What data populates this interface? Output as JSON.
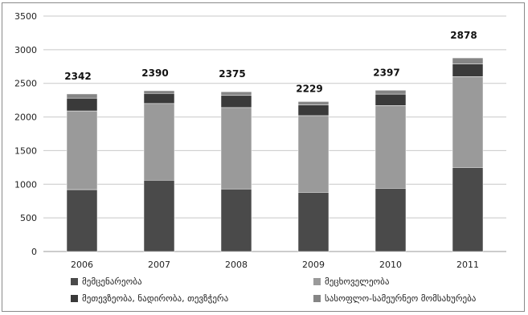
{
  "chart_data": {
    "type": "bar",
    "stacked": true,
    "title": "",
    "xlabel": "",
    "ylabel": "",
    "categories": [
      "2006",
      "2007",
      "2008",
      "2009",
      "2010",
      "2011"
    ],
    "ylim": [
      0,
      3500
    ],
    "yticks": [
      0,
      500,
      1000,
      1500,
      2000,
      2500,
      3000,
      3500
    ],
    "grid": true,
    "legend_position": "bottom",
    "totals": [
      2342,
      2390,
      2375,
      2229,
      2397,
      2878
    ],
    "series": [
      {
        "name": "მემცენარეობა",
        "color": "#4a4a4a",
        "values": [
          920,
          1060,
          930,
          880,
          940,
          1250
        ]
      },
      {
        "name": "მეცხოველეობა",
        "color": "#9a9a9a",
        "values": [
          1170,
          1140,
          1210,
          1140,
          1230,
          1350
        ]
      },
      {
        "name": "მეთევზეობა, ნადირობა, თევზჭერა",
        "color": "#3a3a3a",
        "values": [
          190,
          150,
          180,
          160,
          170,
          190
        ]
      },
      {
        "name": "სასოფლო-სამეურნეო მომსახურება",
        "color": "#858585",
        "values": [
          62,
          40,
          55,
          49,
          57,
          88
        ]
      }
    ]
  }
}
